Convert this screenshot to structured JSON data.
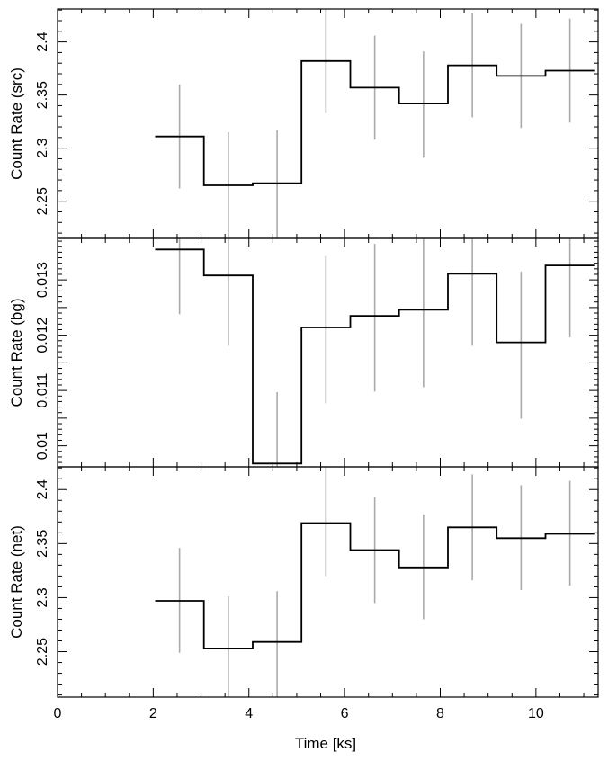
{
  "chart_data": {
    "type": "step",
    "xlabel": "Time [ks]",
    "xlim": [
      0,
      11.3
    ],
    "x_ticks": [
      0,
      2,
      4,
      6,
      8,
      10
    ],
    "x_tick_labels": [
      "0",
      "2",
      "4",
      "6",
      "8",
      "10"
    ],
    "bin_edges": [
      2.04,
      3.06,
      4.08,
      5.1,
      6.12,
      7.14,
      8.16,
      9.18,
      10.2,
      11.22
    ],
    "bin_centers": [
      2.55,
      3.57,
      4.59,
      5.61,
      6.63,
      7.65,
      8.67,
      9.69,
      10.71
    ],
    "line_color": "#000000",
    "error_color": "#aaaaaa",
    "panels": [
      {
        "ylabel": "Count Rate (src)",
        "ylim": [
          2.215,
          2.431
        ],
        "y_ticks": [
          2.25,
          2.3,
          2.35,
          2.4
        ],
        "y_tick_labels": [
          "2.25",
          "2.3",
          "2.35",
          "2.4"
        ],
        "values": [
          2.311,
          2.265,
          2.267,
          2.382,
          2.357,
          2.342,
          2.378,
          2.368,
          2.373
        ],
        "errors_low": [
          2.262,
          2.215,
          2.215,
          2.333,
          2.308,
          2.291,
          2.329,
          2.319,
          2.324
        ],
        "errors_high": [
          2.36,
          2.315,
          2.317,
          2.431,
          2.406,
          2.391,
          2.427,
          2.417,
          2.422
        ]
      },
      {
        "ylabel": "Count Rate (bg)",
        "ylim": [
          0.00962,
          0.01375
        ],
        "y_ticks": [
          0.01,
          0.0105,
          0.011,
          0.0115,
          0.012,
          0.0125,
          0.013
        ],
        "y_tick_labels": [
          "0.01",
          "",
          "0.011",
          "",
          "0.012",
          "",
          "0.013"
        ],
        "values": [
          0.01355,
          0.01308,
          0.00968,
          0.01214,
          0.01235,
          0.01246,
          0.01311,
          0.01187,
          0.01326
        ],
        "errors_low": [
          0.01238,
          0.01181,
          0.00962,
          0.01077,
          0.01098,
          0.01106,
          0.01181,
          0.01049,
          0.01196
        ],
        "errors_high": [
          0.01375,
          0.01375,
          0.01097,
          0.01343,
          0.01365,
          0.01375,
          0.01375,
          0.01315,
          0.01375
        ]
      },
      {
        "ylabel": "Count Rate (net)",
        "ylim": [
          2.208,
          2.421
        ],
        "y_ticks": [
          2.25,
          2.3,
          2.35,
          2.4
        ],
        "y_tick_labels": [
          "2.25",
          "2.3",
          "2.35",
          "2.4"
        ],
        "values": [
          2.297,
          2.253,
          2.259,
          2.369,
          2.344,
          2.328,
          2.365,
          2.355,
          2.359
        ],
        "errors_low": [
          2.249,
          2.208,
          2.208,
          2.32,
          2.295,
          2.28,
          2.316,
          2.307,
          2.311
        ],
        "errors_high": [
          2.346,
          2.301,
          2.306,
          2.421,
          2.393,
          2.377,
          2.414,
          2.404,
          2.408
        ]
      }
    ]
  }
}
